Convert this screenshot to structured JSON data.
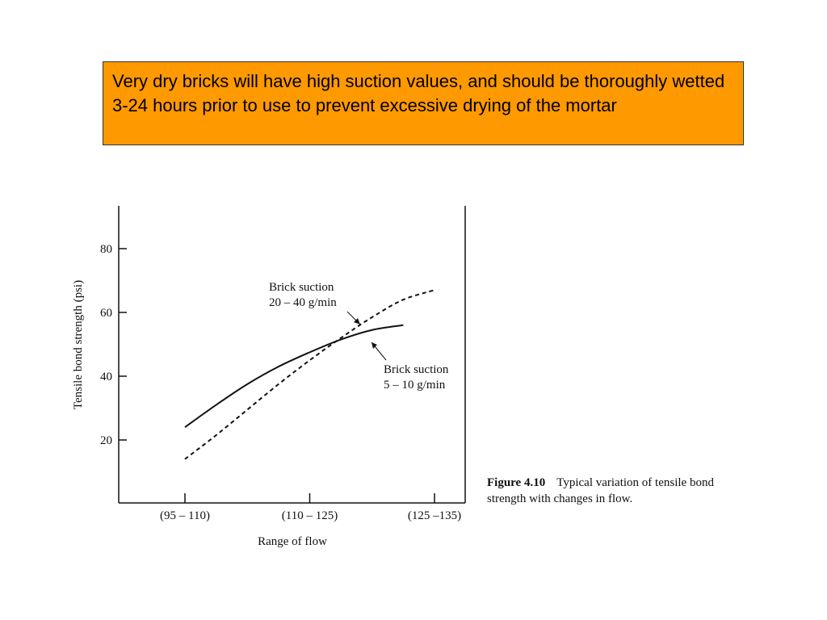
{
  "callout": {
    "text": "Very dry bricks will have high suction values, and should be thoroughly wetted 3-24 hours prior to use to prevent excessive drying of the mortar",
    "background": "#ff9900"
  },
  "caption": {
    "label": "Figure 4.10",
    "text": "Typical variation of tensile bond strength with changes in flow."
  },
  "chart_data": {
    "type": "line",
    "xlabel": "Range of flow",
    "ylabel": "Tensile bond strength (psi)",
    "categories": [
      "(95 – 110)",
      "(110 – 125)",
      "(125 –135)"
    ],
    "yticks": [
      20,
      40,
      60,
      80
    ],
    "ylim": [
      0,
      92
    ],
    "grid": false,
    "series": [
      {
        "name": "Brick suction 5 – 10 g/min",
        "label_lines": [
          "Brick suction",
          "5 – 10 g/min"
        ],
        "style": "solid",
        "points": [
          [
            0,
            24
          ],
          [
            0.25,
            31
          ],
          [
            0.5,
            37.5
          ],
          [
            0.75,
            43
          ],
          [
            1.0,
            47.5
          ],
          [
            1.25,
            51.5
          ],
          [
            1.5,
            54.5
          ],
          [
            1.75,
            56
          ]
        ]
      },
      {
        "name": "Brick suction 20 – 40 g/min",
        "label_lines": [
          "Brick suction",
          "20 – 40 g/min"
        ],
        "style": "dashed",
        "points": [
          [
            0,
            14
          ],
          [
            0.25,
            21.5
          ],
          [
            0.5,
            29.5
          ],
          [
            0.75,
            37.5
          ],
          [
            1.0,
            45
          ],
          [
            1.25,
            52
          ],
          [
            1.5,
            58.5
          ],
          [
            1.75,
            64
          ],
          [
            2.0,
            67
          ]
        ]
      }
    ]
  }
}
